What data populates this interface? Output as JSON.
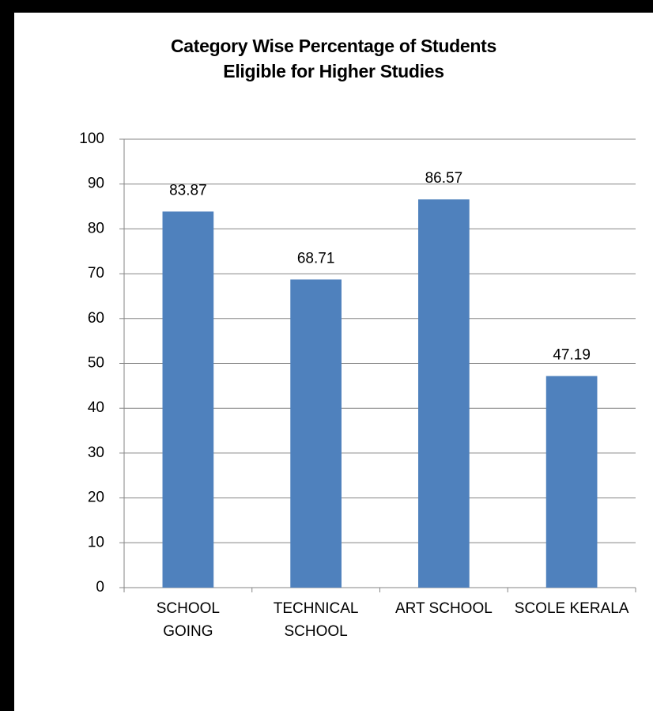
{
  "chart_data": {
    "type": "bar",
    "title": "Category Wise Percentage of Students\nEligible for Higher Studies",
    "categories": [
      "SCHOOL\nGOING",
      "TECHNICAL\nSCHOOL",
      "ART SCHOOL",
      "SCOLE KERALA"
    ],
    "values": [
      83.87,
      68.71,
      86.57,
      47.19
    ],
    "color": "#4f81bd",
    "ylim": [
      0,
      100
    ],
    "yticks": [
      0,
      10,
      20,
      30,
      40,
      50,
      60,
      70,
      80,
      90,
      100
    ],
    "grid": true
  }
}
